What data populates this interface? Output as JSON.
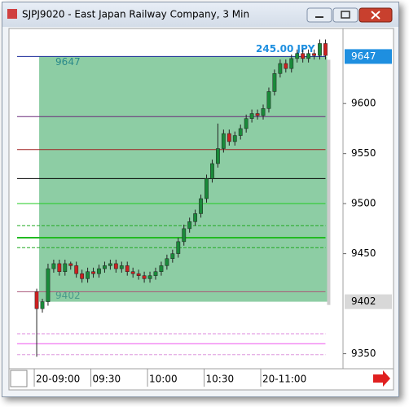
{
  "window": {
    "title": "SJPJ9020 - East Japan Railway Company, 3 Min"
  },
  "chart_data": {
    "type": "candlestick",
    "x": [
      0,
      1,
      2,
      3,
      4,
      5,
      6,
      7,
      8,
      9,
      10,
      11,
      12,
      13,
      14,
      15,
      16,
      17,
      18,
      19,
      20,
      21,
      22,
      23,
      24,
      25,
      26,
      27,
      28,
      29,
      30,
      31,
      32,
      33,
      34,
      35,
      36,
      37,
      38,
      39,
      40,
      41,
      42,
      43,
      44,
      45,
      46,
      47,
      48,
      49,
      50,
      51
    ],
    "open": [
      9412,
      9395,
      9402,
      9435,
      9440,
      9432,
      9440,
      9438,
      9430,
      9425,
      9432,
      9430,
      9435,
      9438,
      9440,
      9435,
      9438,
      9432,
      9430,
      9428,
      9425,
      9428,
      9432,
      9438,
      9445,
      9450,
      9462,
      9475,
      9482,
      9490,
      9505,
      9525,
      9540,
      9555,
      9570,
      9562,
      9568,
      9575,
      9585,
      9590,
      9588,
      9595,
      9612,
      9630,
      9640,
      9635,
      9645,
      9650,
      9645,
      9650,
      9648,
      9660
    ],
    "high": [
      9415,
      9405,
      9440,
      9444,
      9444,
      9444,
      9442,
      9442,
      9434,
      9436,
      9436,
      9439,
      9442,
      9444,
      9444,
      9442,
      9442,
      9436,
      9434,
      9432,
      9432,
      9436,
      9442,
      9449,
      9454,
      9466,
      9479,
      9486,
      9494,
      9509,
      9529,
      9544,
      9580,
      9574,
      9574,
      9572,
      9579,
      9589,
      9594,
      9594,
      9599,
      9616,
      9634,
      9644,
      9644,
      9649,
      9654,
      9654,
      9654,
      9654,
      9664,
      9664
    ],
    "low": [
      9347,
      9391,
      9398,
      9431,
      9428,
      9428,
      9434,
      9426,
      9421,
      9421,
      9426,
      9426,
      9431,
      9434,
      9431,
      9431,
      9428,
      9426,
      9424,
      9421,
      9421,
      9424,
      9428,
      9434,
      9441,
      9446,
      9458,
      9471,
      9478,
      9486,
      9501,
      9521,
      9536,
      9551,
      9558,
      9558,
      9564,
      9571,
      9581,
      9584,
      9584,
      9591,
      9608,
      9626,
      9631,
      9631,
      9641,
      9641,
      9641,
      9644,
      9644,
      9644
    ],
    "close": [
      9395,
      9402,
      9435,
      9440,
      9432,
      9440,
      9438,
      9430,
      9425,
      9432,
      9430,
      9435,
      9438,
      9440,
      9435,
      9438,
      9432,
      9430,
      9428,
      9425,
      9428,
      9432,
      9438,
      9445,
      9450,
      9462,
      9475,
      9482,
      9490,
      9505,
      9525,
      9540,
      9555,
      9570,
      9562,
      9568,
      9575,
      9585,
      9590,
      9588,
      9595,
      9612,
      9630,
      9640,
      9635,
      9645,
      9650,
      9645,
      9650,
      9648,
      9660,
      9648
    ],
    "up_color": "#1a8a3a",
    "down_color": "#cc2020",
    "xlim": [
      -4.9,
      54.1
    ],
    "xticks": [
      {
        "value": 0,
        "label": "20-09:00"
      },
      {
        "value": 10,
        "label": "09:30"
      },
      {
        "value": 20,
        "label": "10:00"
      },
      {
        "value": 30,
        "label": "10:30"
      },
      {
        "value": 40,
        "label": "20-11:00"
      }
    ],
    "ylim": [
      9335,
      9675
    ],
    "yticks": [
      9350,
      9450,
      9500,
      9550,
      9600
    ],
    "price_markers": [
      {
        "value": 9647,
        "color": "#1e8fe0"
      },
      {
        "value": 9402,
        "color": "#d8d8d8"
      }
    ],
    "box": {
      "high": 9647,
      "low": 9402,
      "color": "#5cb87e",
      "annotation": "245.00 JPY"
    },
    "levels": [
      {
        "value": 9647,
        "color": "#1a2a9a",
        "style": "solid"
      },
      {
        "value": 9587,
        "color": "#6a2a7a",
        "style": "solid"
      },
      {
        "value": 9554,
        "color": "#a02020",
        "style": "solid"
      },
      {
        "value": 9525,
        "color": "#000000",
        "style": "solid"
      },
      {
        "value": 9500,
        "color": "#22cc22",
        "style": "solid"
      },
      {
        "value": 9478,
        "color": "#22aa22",
        "style": "dashed"
      },
      {
        "value": 9466,
        "color": "#22bb22",
        "style": "thick"
      },
      {
        "value": 9456,
        "color": "#22aa22",
        "style": "dashed"
      },
      {
        "value": 9412,
        "color": "#aa5577",
        "style": "solid"
      },
      {
        "value": 9370,
        "color": "#dd88dd",
        "style": "dashed"
      },
      {
        "value": 9360,
        "color": "#ee55ee",
        "style": "solid"
      },
      {
        "value": 9349,
        "color": "#dd99dd",
        "style": "dashed"
      }
    ]
  }
}
